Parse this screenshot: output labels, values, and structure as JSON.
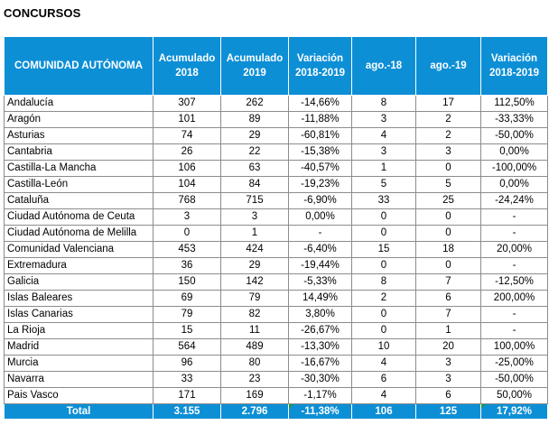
{
  "title": "CONCURSOS",
  "columns": [
    "COMUNIDAD AUTÓNOMA",
    "Acumulado 2018",
    "Acumulado 2019",
    "Variación 2018-2019",
    "ago.-18",
    "ago.-19",
    "Variación 2018-2019"
  ],
  "rows": [
    [
      "Andalucía",
      "307",
      "262",
      "-14,66%",
      "8",
      "17",
      "112,50%"
    ],
    [
      "Aragón",
      "101",
      "89",
      "-11,88%",
      "3",
      "2",
      "-33,33%"
    ],
    [
      "Asturias",
      "74",
      "29",
      "-60,81%",
      "4",
      "2",
      "-50,00%"
    ],
    [
      "Cantabria",
      "26",
      "22",
      "-15,38%",
      "3",
      "3",
      "0,00%"
    ],
    [
      "Castilla-La Mancha",
      "106",
      "63",
      "-40,57%",
      "1",
      "0",
      "-100,00%"
    ],
    [
      "Castilla-León",
      "104",
      "84",
      "-19,23%",
      "5",
      "5",
      "0,00%"
    ],
    [
      "Cataluña",
      "768",
      "715",
      "-6,90%",
      "33",
      "25",
      "-24,24%"
    ],
    [
      "Ciudad Autónoma de Ceuta",
      "3",
      "3",
      "0,00%",
      "0",
      "0",
      "-"
    ],
    [
      "Ciudad Autónoma de Melilla",
      "0",
      "1",
      "-",
      "0",
      "0",
      "-"
    ],
    [
      "Comunidad Valenciana",
      "453",
      "424",
      "-6,40%",
      "15",
      "18",
      "20,00%"
    ],
    [
      "Extremadura",
      "36",
      "29",
      "-19,44%",
      "0",
      "0",
      "-"
    ],
    [
      "Galicia",
      "150",
      "142",
      "-5,33%",
      "8",
      "7",
      "-12,50%"
    ],
    [
      "Islas Baleares",
      "69",
      "79",
      "14,49%",
      "2",
      "6",
      "200,00%"
    ],
    [
      "Islas Canarias",
      "79",
      "82",
      "3,80%",
      "0",
      "7",
      "-"
    ],
    [
      "La Rioja",
      "15",
      "11",
      "-26,67%",
      "0",
      "1",
      "-"
    ],
    [
      "Madrid",
      "564",
      "489",
      "-13,30%",
      "10",
      "20",
      "100,00%"
    ],
    [
      "Murcia",
      "96",
      "80",
      "-16,67%",
      "4",
      "3",
      "-25,00%"
    ],
    [
      "Navarra",
      "33",
      "23",
      "-30,30%",
      "6",
      "3",
      "-50,00%"
    ],
    [
      "Pais Vasco",
      "171",
      "169",
      "-1,17%",
      "4",
      "6",
      "50,00%"
    ]
  ],
  "total": [
    "Total",
    "3.155",
    "2.796",
    "-11,38%",
    "106",
    "125",
    "17,92%"
  ],
  "colors": {
    "header_bg": "#0d8fd6",
    "header_text": "#ffffff",
    "grid": "#8c8c8c",
    "cell_flag": "#1a9e3a"
  }
}
